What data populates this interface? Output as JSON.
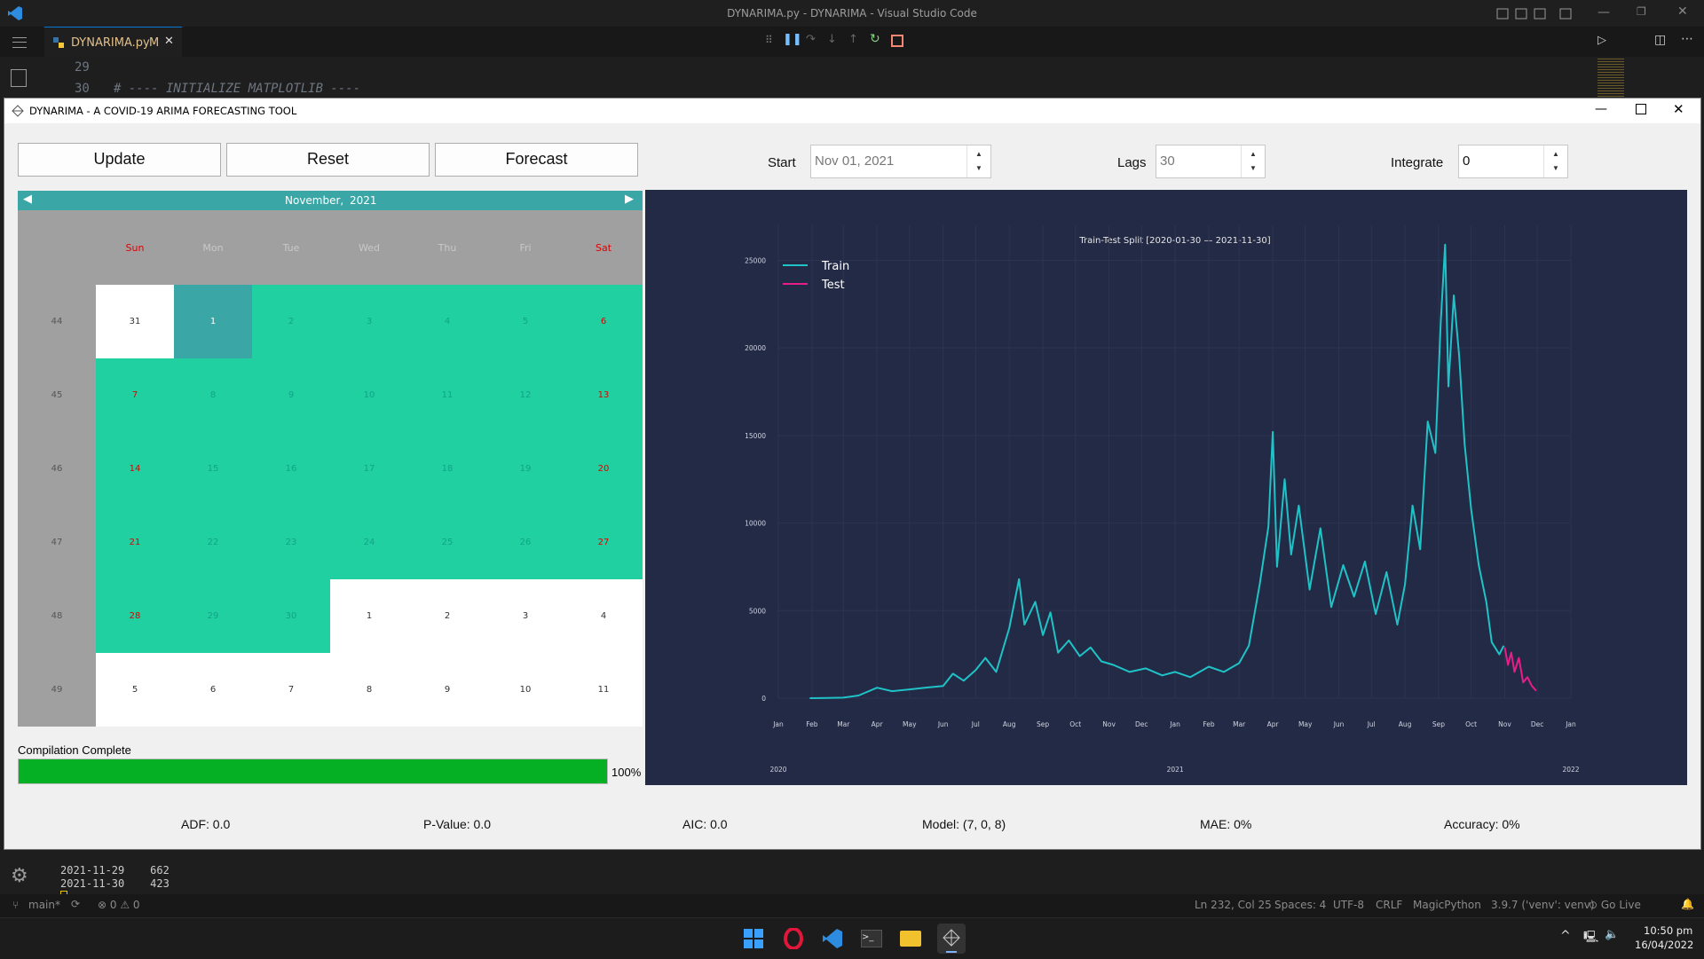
{
  "vscode": {
    "window_title": "DYNARIMA.py - DYNARIMA - Visual Studio Code",
    "tab_label": "DYNARIMA.py",
    "tab_badge": "M",
    "line_29": "29",
    "line_30": "30",
    "code_line_30": "# ---- INITIALIZE MATPLOTLIB ----",
    "terminal_lines": [
      {
        "date": "2021-11-29",
        "value": "662"
      },
      {
        "date": "2021-11-30",
        "value": "423"
      }
    ],
    "status": {
      "branch": "main*",
      "errors": "0",
      "warnings": "0",
      "position": "Ln 232, Col 25",
      "spaces": "Spaces: 4",
      "encoding": "UTF-8",
      "eol": "CRLF",
      "language": "MagicPython",
      "interpreter": "3.9.7 ('venv': venv)",
      "golive": "Go Live"
    }
  },
  "taskbar": {
    "time": "10:50 pm",
    "date": "16/04/2022"
  },
  "app": {
    "title": "DYNARIMA - A COVID-19 ARIMA FORECASTING TOOL",
    "buttons": {
      "update": "Update",
      "reset": "Reset",
      "forecast": "Forecast"
    },
    "start_label": "Start",
    "start_value": "Nov 01, 2021",
    "lags_label": "Lags",
    "lags_value": "30",
    "integrate_label": "Integrate",
    "integrate_value": "0",
    "calendar": {
      "month": "November,",
      "year": "2021",
      "weekdays": [
        "Sun",
        "Mon",
        "Tue",
        "Wed",
        "Thu",
        "Fri",
        "Sat"
      ],
      "weeks": [
        "44",
        "45",
        "46",
        "47",
        "48",
        "49"
      ],
      "days": [
        [
          "31",
          "1",
          "2",
          "3",
          "4",
          "5",
          "6"
        ],
        [
          "7",
          "8",
          "9",
          "10",
          "11",
          "12",
          "13"
        ],
        [
          "14",
          "15",
          "16",
          "17",
          "18",
          "19",
          "20"
        ],
        [
          "21",
          "22",
          "23",
          "24",
          "25",
          "26",
          "27"
        ],
        [
          "28",
          "29",
          "30",
          "1",
          "2",
          "3",
          "4"
        ],
        [
          "5",
          "6",
          "7",
          "8",
          "9",
          "10",
          "11"
        ]
      ],
      "colors": {
        "header": "#3aa6a6",
        "highlight": "#20d0a0",
        "selected": "#3aa6a6",
        "weekend": "#e00000"
      }
    },
    "progress": {
      "label": "Compilation Complete",
      "value": 100,
      "text": "100%"
    },
    "stats": {
      "adf": "ADF: 0.0",
      "pvalue": "P-Value: 0.0",
      "aic": "AIC: 0.0",
      "model": "Model: (7, 0, 8)",
      "mae": "MAE: 0%",
      "accuracy": "Accuracy: 0%"
    }
  },
  "chart_data": {
    "type": "line",
    "title": "Train-Test Split [2020-01-30 — 2021-11-30]",
    "xlabel": "",
    "ylabel": "",
    "ylim": [
      0,
      27000
    ],
    "xlim": [
      "2020-01-01",
      "2022-01-01"
    ],
    "yticks": [
      "0",
      "5000",
      "10000",
      "15000",
      "20000",
      "25000"
    ],
    "xtick_labels": [
      "Jan",
      "Feb",
      "Mar",
      "Apr",
      "May",
      "Jun",
      "Jul",
      "Aug",
      "Sep",
      "Oct",
      "Nov",
      "Dec",
      "Jan",
      "Feb",
      "Mar",
      "Apr",
      "May",
      "Jun",
      "Jul",
      "Aug",
      "Sep",
      "Oct",
      "Nov",
      "Dec",
      "Jan"
    ],
    "year_labels": [
      "2020",
      "2021",
      "2022"
    ],
    "legend_position": "top-left",
    "series": [
      {
        "name": "Train",
        "color": "#1fc3c7",
        "points": [
          [
            "2020-01-30",
            0
          ],
          [
            "2020-02-15",
            10
          ],
          [
            "2020-03-01",
            30
          ],
          [
            "2020-03-15",
            150
          ],
          [
            "2020-04-01",
            600
          ],
          [
            "2020-04-15",
            400
          ],
          [
            "2020-05-01",
            500
          ],
          [
            "2020-05-15",
            600
          ],
          [
            "2020-06-01",
            700
          ],
          [
            "2020-06-10",
            1400
          ],
          [
            "2020-06-20",
            1000
          ],
          [
            "2020-07-01",
            1600
          ],
          [
            "2020-07-10",
            2300
          ],
          [
            "2020-07-20",
            1500
          ],
          [
            "2020-08-01",
            4000
          ],
          [
            "2020-08-10",
            6800
          ],
          [
            "2020-08-15",
            4200
          ],
          [
            "2020-08-25",
            5500
          ],
          [
            "2020-09-01",
            3600
          ],
          [
            "2020-09-08",
            4900
          ],
          [
            "2020-09-15",
            2600
          ],
          [
            "2020-09-25",
            3300
          ],
          [
            "2020-10-05",
            2400
          ],
          [
            "2020-10-15",
            2900
          ],
          [
            "2020-10-25",
            2100
          ],
          [
            "2020-11-05",
            1900
          ],
          [
            "2020-11-20",
            1500
          ],
          [
            "2020-12-05",
            1700
          ],
          [
            "2020-12-20",
            1300
          ],
          [
            "2021-01-01",
            1500
          ],
          [
            "2021-01-15",
            1200
          ],
          [
            "2021-02-01",
            1800
          ],
          [
            "2021-02-15",
            1500
          ],
          [
            "2021-03-01",
            2000
          ],
          [
            "2021-03-10",
            3000
          ],
          [
            "2021-03-20",
            6500
          ],
          [
            "2021-03-28",
            9800
          ],
          [
            "2021-04-01",
            15200
          ],
          [
            "2021-04-05",
            7500
          ],
          [
            "2021-04-12",
            12500
          ],
          [
            "2021-04-18",
            8200
          ],
          [
            "2021-04-25",
            11000
          ],
          [
            "2021-05-05",
            6200
          ],
          [
            "2021-05-15",
            9700
          ],
          [
            "2021-05-25",
            5200
          ],
          [
            "2021-06-05",
            7600
          ],
          [
            "2021-06-15",
            5800
          ],
          [
            "2021-06-25",
            7800
          ],
          [
            "2021-07-05",
            4800
          ],
          [
            "2021-07-15",
            7200
          ],
          [
            "2021-07-25",
            4200
          ],
          [
            "2021-08-01",
            6500
          ],
          [
            "2021-08-08",
            11000
          ],
          [
            "2021-08-15",
            8500
          ],
          [
            "2021-08-22",
            15800
          ],
          [
            "2021-08-29",
            14000
          ],
          [
            "2021-09-03",
            21500
          ],
          [
            "2021-09-07",
            25900
          ],
          [
            "2021-09-10",
            17800
          ],
          [
            "2021-09-15",
            23000
          ],
          [
            "2021-09-20",
            19500
          ],
          [
            "2021-09-25",
            14500
          ],
          [
            "2021-10-01",
            10800
          ],
          [
            "2021-10-08",
            7600
          ],
          [
            "2021-10-15",
            5500
          ],
          [
            "2021-10-20",
            3200
          ],
          [
            "2021-10-27",
            2500
          ],
          [
            "2021-10-31",
            3000
          ]
        ]
      },
      {
        "name": "Test",
        "color": "#e81d8a",
        "points": [
          [
            "2021-11-01",
            2900
          ],
          [
            "2021-11-04",
            1900
          ],
          [
            "2021-11-07",
            2600
          ],
          [
            "2021-11-10",
            1500
          ],
          [
            "2021-11-14",
            2300
          ],
          [
            "2021-11-18",
            900
          ],
          [
            "2021-11-22",
            1200
          ],
          [
            "2021-11-26",
            700
          ],
          [
            "2021-11-30",
            423
          ]
        ]
      }
    ]
  }
}
